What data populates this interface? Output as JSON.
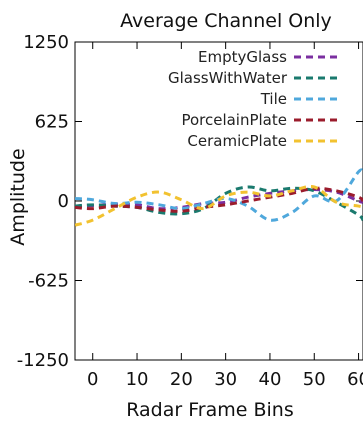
{
  "chart_data": {
    "type": "line",
    "title": "Average Channel Only",
    "xlabel": "Radar Frame Bins",
    "ylabel": "Amplitude",
    "xlim": [
      -4,
      61
    ],
    "ylim": [
      -1250,
      1250
    ],
    "xticks": [
      0,
      10,
      20,
      30,
      40,
      50,
      60
    ],
    "yticks": [
      1250,
      625,
      0,
      -625,
      -1250
    ],
    "legend_position": "top-right",
    "grid": false,
    "series": [
      {
        "name": "EmptyGlass",
        "color": "#7b2fa0",
        "x": [
          -4,
          0,
          5,
          10,
          15,
          20,
          25,
          30,
          35,
          40,
          45,
          50,
          55,
          60,
          61
        ],
        "y": [
          -40,
          -35,
          -25,
          -30,
          -60,
          -50,
          -20,
          -10,
          30,
          60,
          80,
          90,
          70,
          0,
          -10
        ]
      },
      {
        "name": "GlassWithWater",
        "color": "#1a7a6e",
        "x": [
          -4,
          0,
          5,
          10,
          15,
          20,
          25,
          30,
          35,
          40,
          45,
          50,
          55,
          60,
          61
        ],
        "y": [
          -40,
          -30,
          -40,
          -50,
          -90,
          -100,
          -60,
          60,
          110,
          80,
          100,
          80,
          -10,
          -110,
          -150
        ]
      },
      {
        "name": "Tile",
        "color": "#4fa8dc",
        "x": [
          -4,
          0,
          5,
          10,
          15,
          20,
          25,
          30,
          35,
          40,
          45,
          50,
          55,
          60,
          61
        ],
        "y": [
          20,
          10,
          -20,
          -10,
          -30,
          -60,
          -20,
          20,
          -40,
          -150,
          -90,
          40,
          0,
          230,
          220
        ]
      },
      {
        "name": "PorcelainPlate",
        "color": "#9b1c2c",
        "x": [
          -4,
          0,
          5,
          10,
          15,
          20,
          25,
          30,
          35,
          40,
          45,
          50,
          55,
          60,
          61
        ],
        "y": [
          -50,
          -60,
          -40,
          -50,
          -70,
          -80,
          -50,
          -30,
          0,
          30,
          60,
          100,
          80,
          30,
          0
        ]
      },
      {
        "name": "CeramicPlate",
        "color": "#f2c230",
        "x": [
          -4,
          0,
          5,
          10,
          15,
          20,
          25,
          30,
          35,
          40,
          45,
          50,
          55,
          60,
          61
        ],
        "y": [
          -190,
          -150,
          -60,
          30,
          70,
          10,
          -60,
          40,
          70,
          40,
          80,
          110,
          -10,
          -40,
          -50
        ]
      }
    ]
  }
}
